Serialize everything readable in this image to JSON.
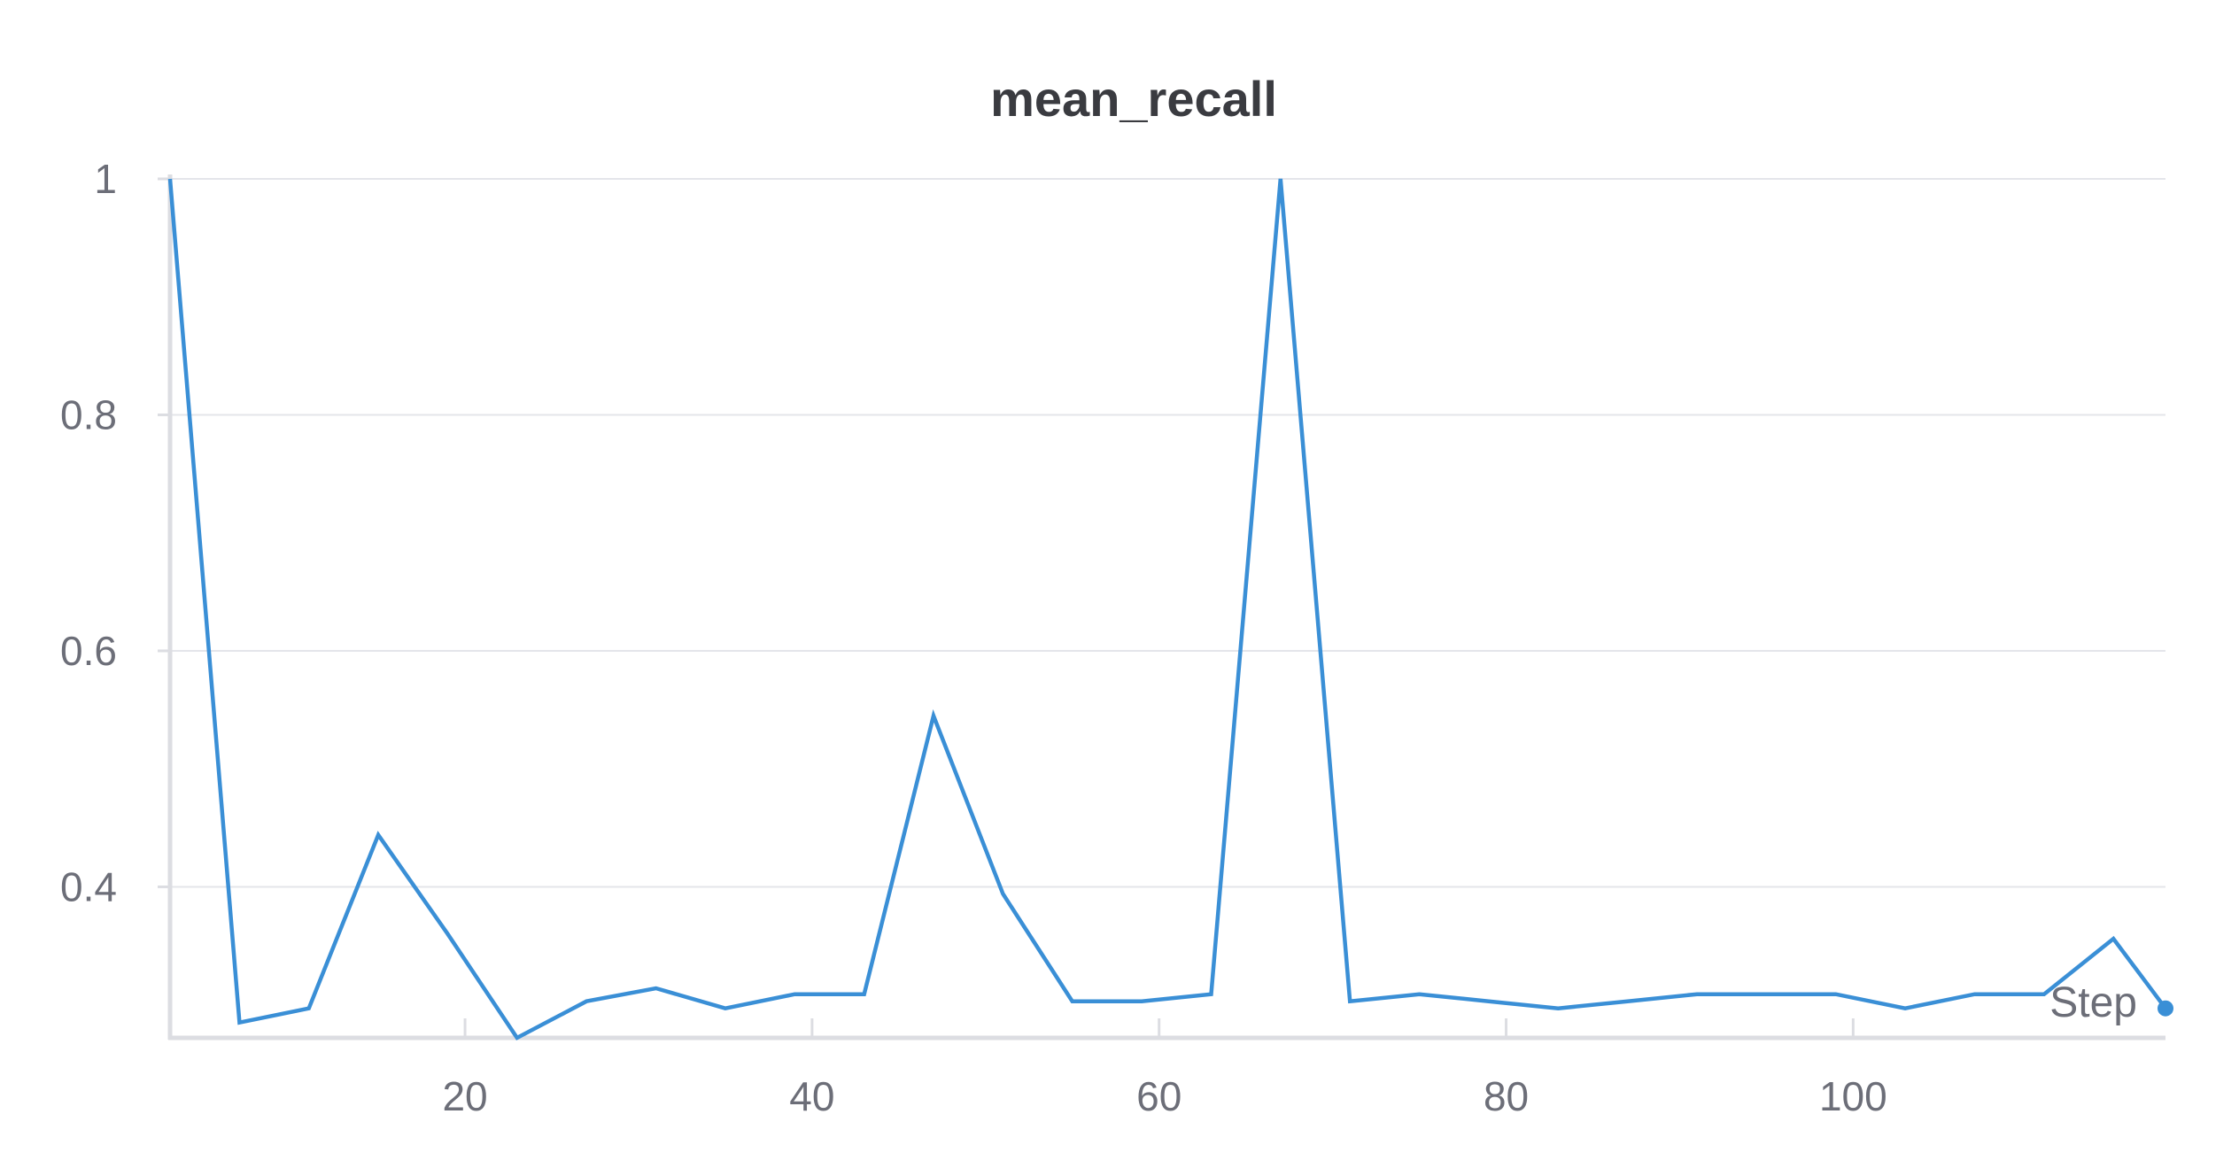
{
  "chart_data": {
    "type": "line",
    "title": "mean_recall",
    "xlabel": "Step",
    "ylabel": "",
    "xlim": [
      3,
      118
    ],
    "ylim": [
      0.272,
      1.0
    ],
    "x_ticks": [
      20,
      40,
      60,
      80,
      100
    ],
    "y_ticks": [
      0.4,
      0.6,
      0.8,
      1
    ],
    "x_tick_labels": [
      "20",
      "40",
      "60",
      "80",
      "100"
    ],
    "y_tick_labels": [
      "0.4",
      "0.6",
      "0.8",
      "1"
    ],
    "grid": "horizontal",
    "color": "#3a8fd6",
    "series": [
      {
        "x": [
          3,
          7,
          11,
          15,
          19,
          23,
          27,
          31,
          35,
          39,
          43,
          47,
          51,
          55,
          59,
          63,
          67,
          71,
          75,
          79,
          83,
          87,
          91,
          95,
          99,
          103,
          107,
          111,
          115,
          118
        ],
        "y": [
          1.0,
          0.285,
          0.297,
          0.444,
          0.36,
          0.272,
          0.303,
          0.314,
          0.297,
          0.309,
          0.309,
          0.545,
          0.394,
          0.303,
          0.303,
          0.309,
          1.0,
          0.303,
          0.309,
          0.303,
          0.297,
          0.303,
          0.309,
          0.309,
          0.309,
          0.297,
          0.309,
          0.309,
          0.356,
          0.297
        ]
      }
    ]
  }
}
